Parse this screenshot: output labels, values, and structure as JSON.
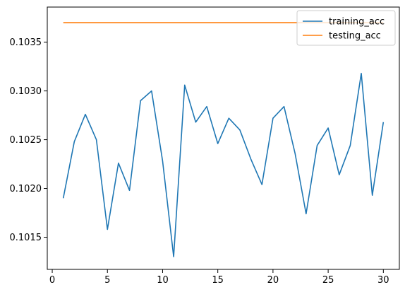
{
  "chart_data": {
    "type": "line",
    "title": "",
    "xlabel": "",
    "ylabel": "",
    "xlim": [
      -0.45,
      31.45
    ],
    "ylim": [
      0.10117,
      0.10386
    ],
    "grid": false,
    "legend_position": "top-right",
    "x_ticks": [
      0,
      5,
      10,
      15,
      20,
      25,
      30
    ],
    "x_tick_labels": [
      "0",
      "5",
      "10",
      "15",
      "20",
      "25",
      "30"
    ],
    "y_ticks": [
      0.1015,
      0.102,
      0.1025,
      0.103,
      0.1035
    ],
    "y_tick_labels": [
      "0.1015",
      "0.1020",
      "0.1025",
      "0.1030",
      "0.1035"
    ],
    "x": [
      1,
      2,
      3,
      4,
      5,
      6,
      7,
      8,
      9,
      10,
      11,
      12,
      13,
      14,
      15,
      16,
      17,
      18,
      19,
      20,
      21,
      22,
      23,
      24,
      25,
      26,
      27,
      28,
      29,
      30
    ],
    "series": [
      {
        "name": "training_acc",
        "color": "#1f77b4",
        "values": [
          0.1019,
          0.10248,
          0.10276,
          0.1025,
          0.10158,
          0.10226,
          0.10198,
          0.1029,
          0.103,
          0.10228,
          0.1013,
          0.10306,
          0.10268,
          0.10284,
          0.10246,
          0.10272,
          0.1026,
          0.1023,
          0.10204,
          0.10272,
          0.10284,
          0.10236,
          0.10174,
          0.10244,
          0.10262,
          0.10214,
          0.10244,
          0.10318,
          0.10193,
          0.10268
        ]
      },
      {
        "name": "testing_acc",
        "color": "#ff7f0e",
        "values": [
          0.1037,
          0.1037,
          0.1037,
          0.1037,
          0.1037,
          0.1037,
          0.1037,
          0.1037,
          0.1037,
          0.1037,
          0.1037,
          0.1037,
          0.1037,
          0.1037,
          0.1037,
          0.1037,
          0.1037,
          0.1037,
          0.1037,
          0.1037,
          0.1037,
          0.1037,
          0.1037,
          0.1037,
          0.1037,
          0.1037,
          0.1037,
          0.1037,
          0.1037,
          0.1037
        ]
      }
    ]
  }
}
